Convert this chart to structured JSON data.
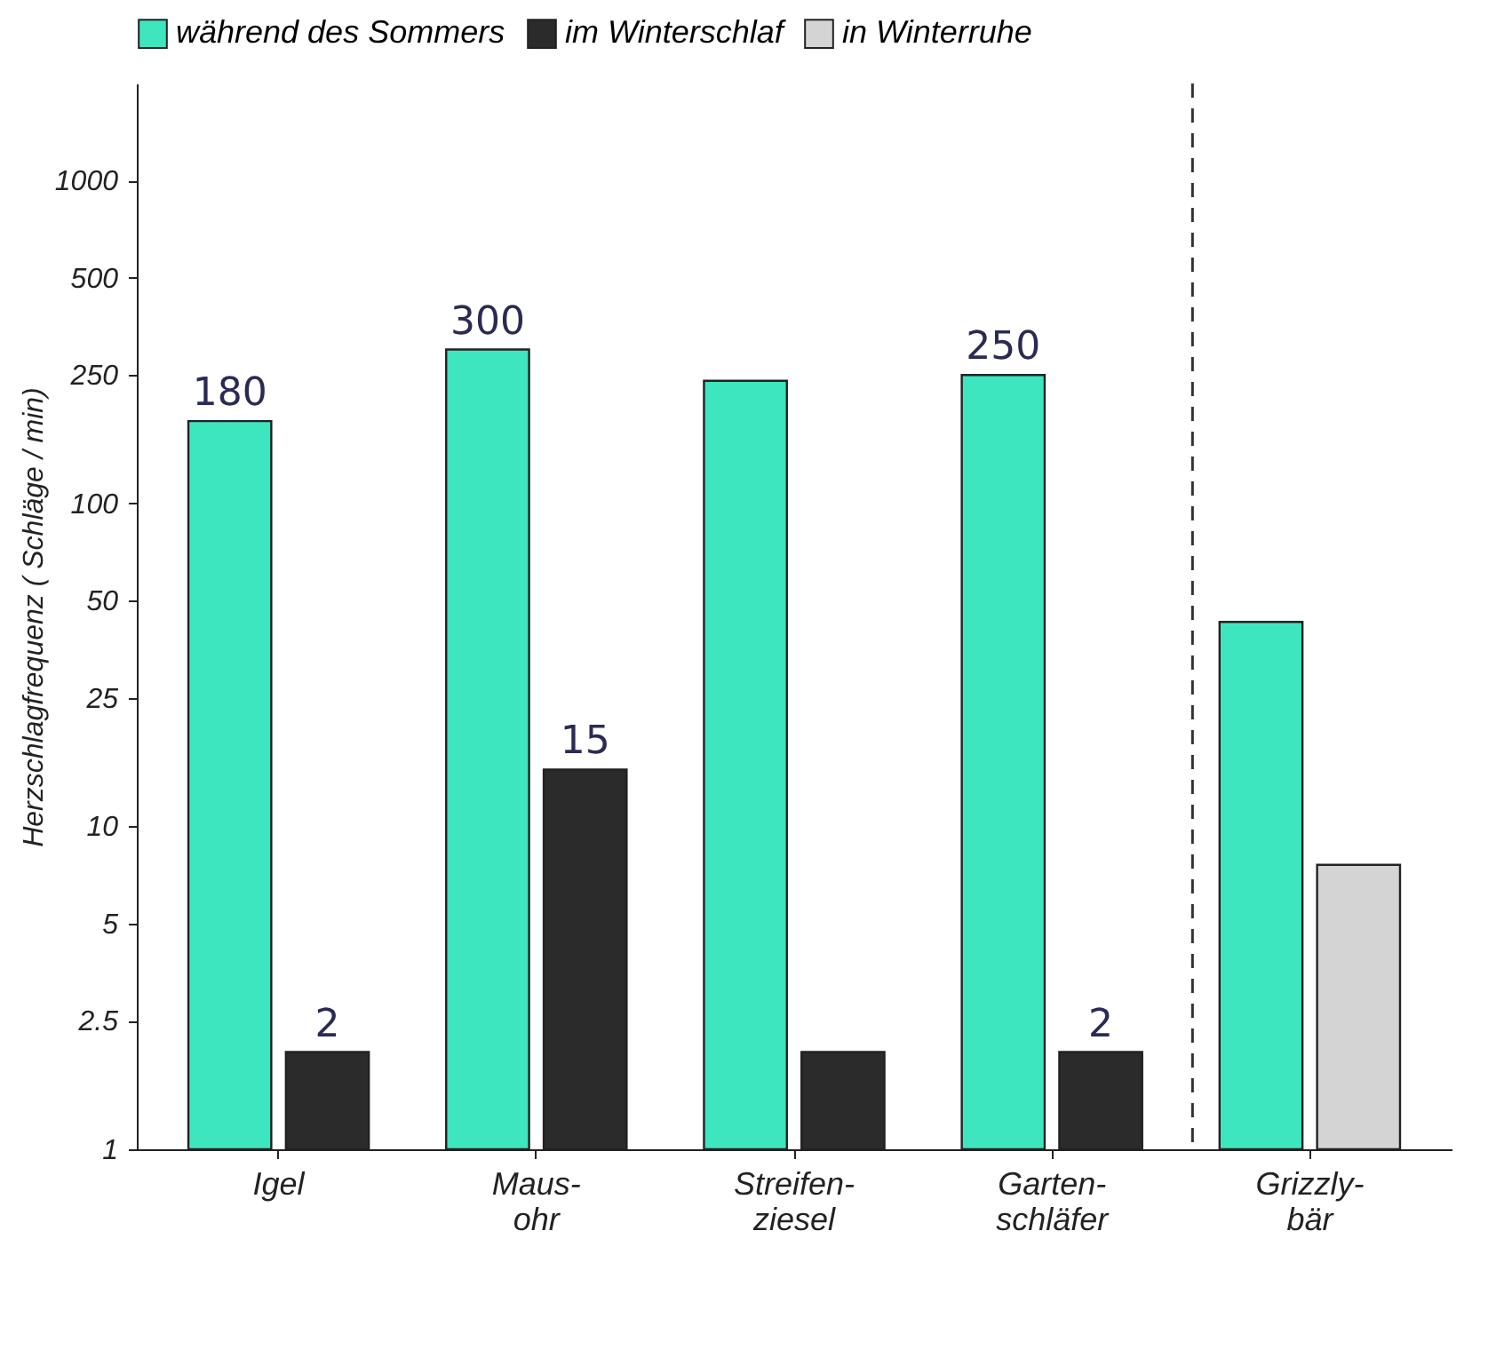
{
  "chart_data": {
    "type": "bar",
    "ylabel": "Herzschlagfrequenz ( Schläge / min)",
    "categories": [
      "Igel",
      "Maus-\nohr",
      "Streifen-\nziesel",
      "Garten-\nschläfer",
      "Grizzly-\nbär"
    ],
    "series": [
      {
        "name": "während des Sommers",
        "color": "#3ee6bf",
        "values": [
          180,
          300,
          240,
          250,
          43
        ],
        "value_labels": [
          "180",
          "300",
          null,
          "250",
          null
        ]
      },
      {
        "name": "im Winterschlaf",
        "color": "#2b2b2b",
        "values": [
          2,
          15,
          2,
          2,
          null
        ],
        "value_labels": [
          "2",
          "15",
          null,
          "2",
          null
        ]
      },
      {
        "name": "in Winterruhe",
        "color": "#d4d4d4",
        "values": [
          null,
          null,
          null,
          null,
          7.6
        ]
      }
    ],
    "log": true,
    "ylim": [
      1,
      2000
    ],
    "yticks": [
      1,
      2.5,
      5,
      10,
      25,
      50,
      100,
      250,
      500,
      1000
    ],
    "grid": false,
    "legend": "top",
    "ref_lines": [
      {
        "axis": "x",
        "value": "Grizzly-\nbär",
        "line_style": "dashed",
        "color": "#333333"
      }
    ]
  }
}
